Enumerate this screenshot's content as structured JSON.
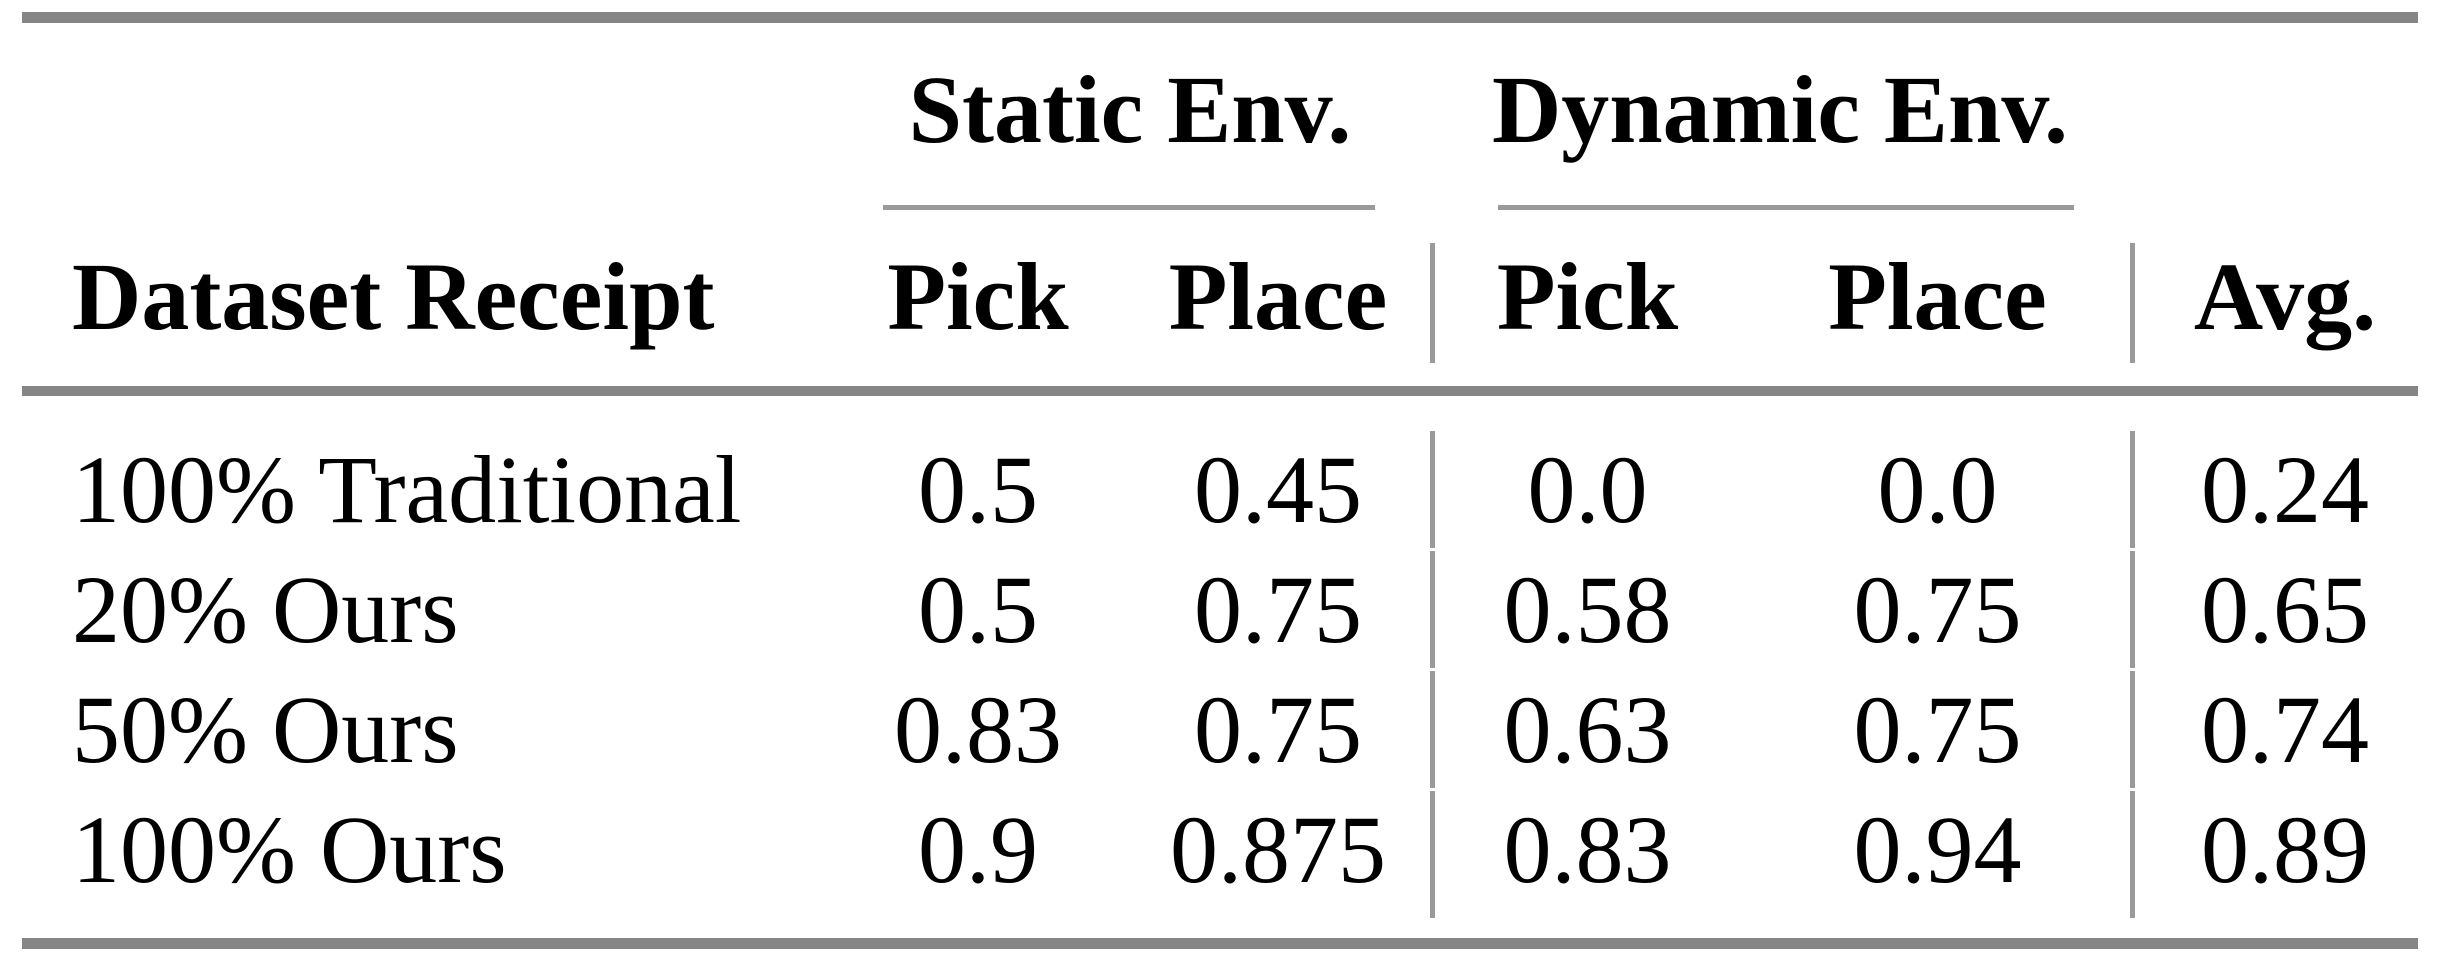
{
  "table": {
    "col_groups": [
      {
        "label": "Static Env."
      },
      {
        "label": "Dynamic Env."
      }
    ],
    "headers": {
      "dataset": "Dataset Receipt",
      "static_pick": "Pick",
      "static_place": "Place",
      "dynamic_pick": "Pick",
      "dynamic_place": "Place",
      "avg": "Avg."
    },
    "rows": [
      {
        "label": "100% Traditional",
        "cells": [
          "0.5",
          "0.45",
          "0.0",
          "0.0",
          "0.24"
        ]
      },
      {
        "label": "20% Ours",
        "cells": [
          "0.5",
          "0.75",
          "0.58",
          "0.75",
          "0.65"
        ]
      },
      {
        "label": "50% Ours",
        "cells": [
          "0.83",
          "0.75",
          "0.63",
          "0.75",
          "0.74"
        ]
      },
      {
        "label": "100% Ours",
        "cells": [
          "0.9",
          "0.875",
          "0.83",
          "0.94",
          "0.89"
        ]
      }
    ],
    "colors": {
      "thick_rule": "#858585",
      "thin_rule": "#9a9a9a",
      "text": "#000000",
      "background": "#ffffff"
    }
  }
}
